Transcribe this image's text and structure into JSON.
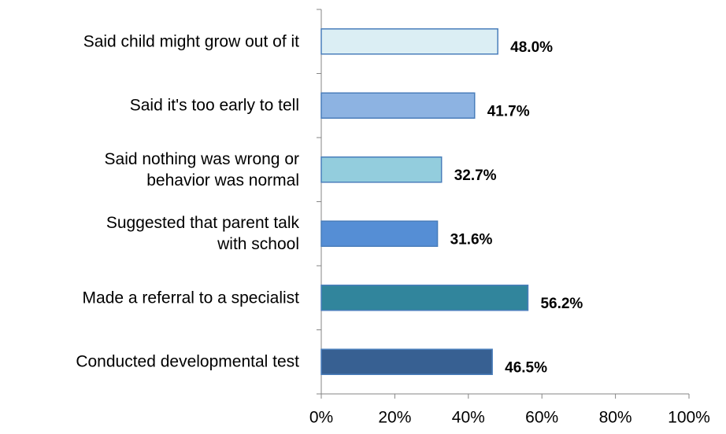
{
  "chart_data": {
    "type": "bar",
    "orientation": "horizontal",
    "categories": [
      "Said child might grow out of it",
      "Said it's too early to tell",
      "Said nothing was wrong or\nbehavior was normal",
      "Suggested that parent talk\nwith school",
      "Made a referral to a specialist",
      "Conducted developmental test"
    ],
    "values": [
      48.0,
      41.7,
      32.7,
      31.6,
      56.2,
      46.5
    ],
    "value_labels": [
      "48.0%",
      "41.7%",
      "32.7%",
      "31.6%",
      "56.2%",
      "46.5%"
    ],
    "colors": [
      "#dbeef4",
      "#8db3e2",
      "#93cddd",
      "#558ed5",
      "#31859c",
      "#376092"
    ],
    "xlim": [
      0,
      100
    ],
    "xticks": [
      {
        "value": 0,
        "label": "0%"
      },
      {
        "value": 20,
        "label": "20%"
      },
      {
        "value": 40,
        "label": "40%"
      },
      {
        "value": 60,
        "label": "60%"
      },
      {
        "value": 80,
        "label": "80%"
      },
      {
        "value": 100,
        "label": "100%"
      }
    ],
    "grid": false
  }
}
